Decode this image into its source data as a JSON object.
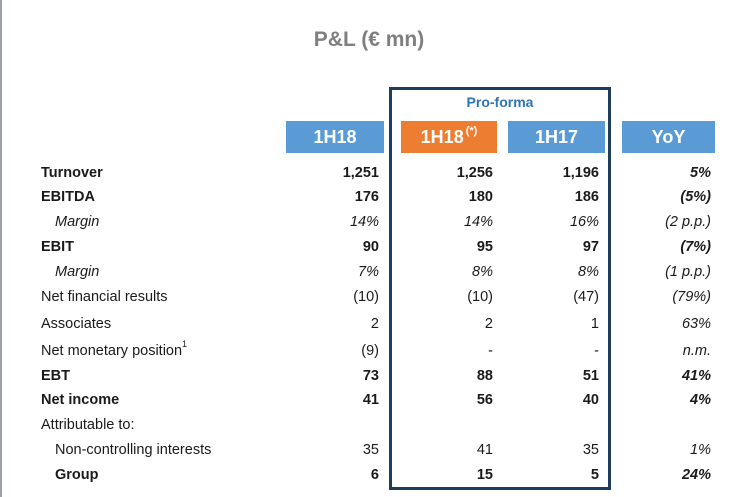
{
  "title": "P&L (€ mn)",
  "proforma_label": "Pro-forma",
  "headers": {
    "col1": "1H18",
    "col2": "1H18",
    "col2_note": "(*)",
    "col3": "1H17",
    "col4": "YoY"
  },
  "rows": [
    {
      "label": "Turnover",
      "v1": "1,251",
      "v2": "1,256",
      "v3": "1,196",
      "v4": "5%"
    },
    {
      "label": "EBITDA",
      "v1": "176",
      "v2": "180",
      "v3": "186",
      "v4": "(5%)"
    },
    {
      "label": "Margin",
      "v1": "14%",
      "v2": "14%",
      "v3": "16%",
      "v4": "(2 p.p.)"
    },
    {
      "label": "EBIT",
      "v1": "90",
      "v2": "95",
      "v3": "97",
      "v4": "(7%)"
    },
    {
      "label": "Margin",
      "v1": "7%",
      "v2": "8%",
      "v3": "8%",
      "v4": "(1 p.p.)"
    },
    {
      "label": "Net financial results",
      "v1": "(10)",
      "v2": "(10)",
      "v3": "(47)",
      "v4": "(79%)"
    },
    {
      "label": "Associates",
      "v1": "2",
      "v2": "2",
      "v3": "1",
      "v4": "63%"
    },
    {
      "label": "Net monetary position",
      "note": "1",
      "v1": "(9)",
      "v2": "-",
      "v3": "-",
      "v4": "n.m."
    },
    {
      "label": "EBT",
      "v1": "73",
      "v2": "88",
      "v3": "51",
      "v4": "41%"
    },
    {
      "label": "Net income",
      "v1": "41",
      "v2": "56",
      "v3": "40",
      "v4": "4%"
    },
    {
      "label": "Attributable to:",
      "v1": "",
      "v2": "",
      "v3": "",
      "v4": ""
    },
    {
      "label": "Non-controlling interests",
      "v1": "35",
      "v2": "41",
      "v3": "35",
      "v4": "1%"
    },
    {
      "label": "Group",
      "v1": "6",
      "v2": "15",
      "v3": "5",
      "v4": "24%"
    }
  ]
}
